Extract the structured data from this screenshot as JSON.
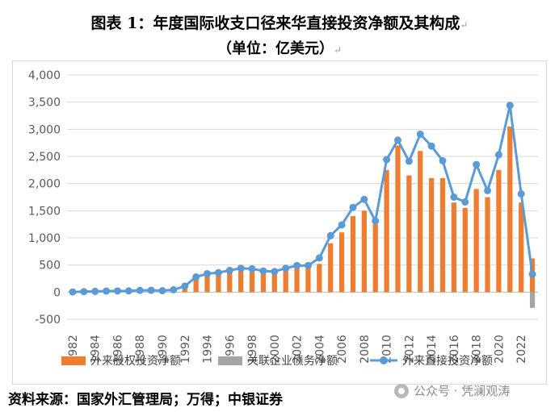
{
  "title_line1": "图表 1：年度国际收支口径来华直接投资净额及其构成",
  "title_line2": "（单位：亿美元）",
  "return_mark": "↵",
  "source": "资料来源：国家外汇管理局；万得；中银证券",
  "watermark": "公众号 · 凭澜观涛",
  "colors": {
    "equity": "#ED7D31",
    "debt": "#A5A5A5",
    "total": "#5B9BD5",
    "grid": "#d9d9d9",
    "axis_text": "#595959"
  },
  "chart_data": {
    "type": "bar",
    "ylim": [
      -500,
      4000
    ],
    "yticks": [
      "-500",
      "0",
      "500",
      "1,000",
      "1,500",
      "2,000",
      "2,500",
      "3,000",
      "3,500",
      "4,000"
    ],
    "ytick_values": [
      -500,
      0,
      500,
      1000,
      1500,
      2000,
      2500,
      3000,
      3500,
      4000
    ],
    "categories": [
      "1982",
      "1983",
      "1984",
      "1985",
      "1986",
      "1987",
      "1988",
      "1989",
      "1990",
      "1991",
      "1992",
      "1993",
      "1994",
      "1995",
      "1996",
      "1997",
      "1998",
      "1999",
      "2000",
      "2001",
      "2002",
      "2003",
      "2004",
      "2005",
      "2006",
      "2007",
      "2008",
      "2009",
      "2010",
      "2011",
      "2012",
      "2013",
      "2014",
      "2015",
      "2016",
      "2017",
      "2018",
      "2019",
      "2020",
      "2021",
      "2022",
      "2023"
    ],
    "xtick_labels": [
      "1982",
      "1984",
      "1986",
      "1988",
      "1990",
      "1992",
      "1994",
      "1996",
      "1998",
      "2000",
      "2002",
      "2004",
      "2006",
      "2008",
      "2010",
      "2012",
      "2014",
      "2016",
      "2018",
      "2020",
      "2022"
    ],
    "series": [
      {
        "name": "外来股权投资净额",
        "kind": "bar",
        "values": [
          4,
          9,
          14,
          20,
          22,
          23,
          32,
          34,
          27,
          44,
          72,
          230,
          300,
          330,
          370,
          410,
          380,
          350,
          380,
          420,
          460,
          450,
          520,
          900,
          1100,
          1400,
          1500,
          1250,
          2250,
          2700,
          2150,
          2600,
          2100,
          2100,
          1650,
          1550,
          1900,
          1750,
          2250,
          3050,
          1650,
          620
        ]
      },
      {
        "name": "关联企业债务净额",
        "kind": "bar",
        "values": [
          0,
          0,
          0,
          0,
          0,
          0,
          0,
          0,
          0,
          0,
          0,
          0,
          0,
          0,
          0,
          0,
          0,
          0,
          0,
          0,
          0,
          0,
          0,
          0,
          0,
          0,
          0,
          0,
          0,
          0,
          0,
          0,
          0,
          0,
          0,
          0,
          0,
          0,
          0,
          0,
          0,
          -290
        ]
      },
      {
        "name": "外来直接投资净额",
        "kind": "line",
        "values": [
          4,
          9,
          14,
          20,
          22,
          23,
          32,
          34,
          27,
          44,
          110,
          280,
          340,
          360,
          400,
          440,
          430,
          390,
          380,
          440,
          490,
          490,
          630,
          1040,
          1240,
          1560,
          1710,
          1310,
          2440,
          2800,
          2410,
          2910,
          2690,
          2420,
          1750,
          1660,
          2350,
          1870,
          2530,
          3440,
          1810,
          330
        ]
      }
    ]
  }
}
